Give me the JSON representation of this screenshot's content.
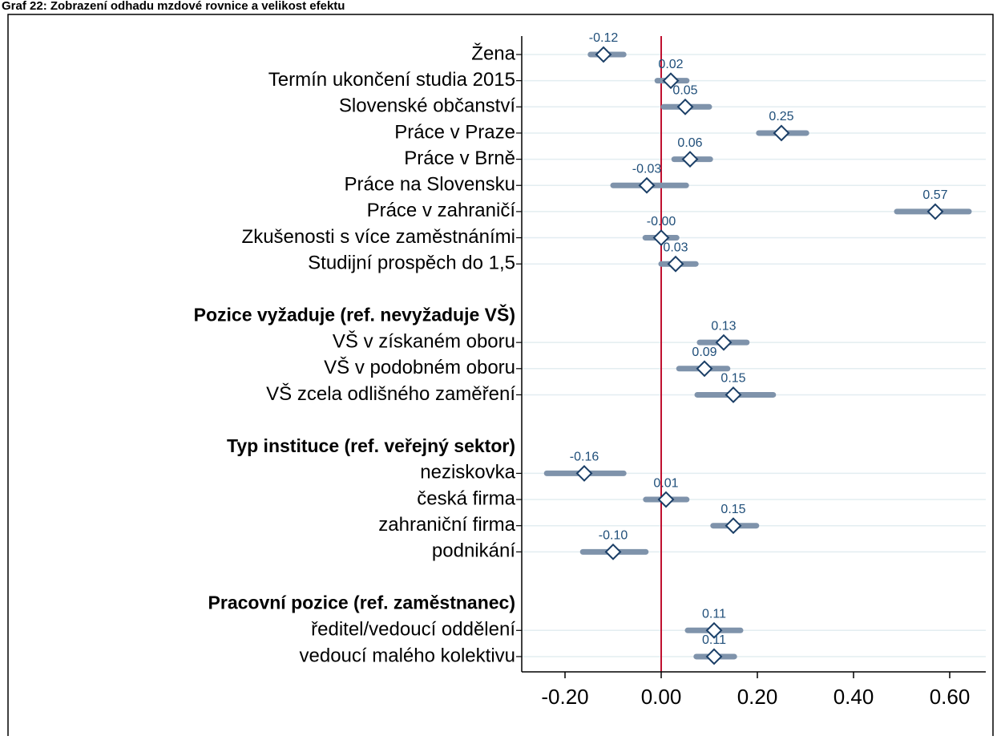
{
  "chart_data": {
    "type": "coefplot",
    "title": "Graf 22: Zobrazení odhadu mzdové rovnice a velikost efektu",
    "categories": [
      "Žena",
      "Termín ukončení studia 2015",
      "Slovenské občanství",
      "Práce v Praze",
      "Práce v Brně",
      "Práce na Slovensku",
      "Práce v zahraničí",
      "Zkušenosti s více zaměstnáními",
      "Studijní prospěch do 1,5",
      null,
      "Pozice vyžaduje (ref. nevyžaduje VŠ)",
      "VŠ v získaném oboru",
      "VŠ v podobném oboru",
      "VŠ zcela odlišného zaměření",
      null,
      "Typ instituce (ref. veřejný sektor)",
      "neziskovka",
      "česká firma",
      "zahraniční firma",
      "podnikání",
      null,
      "Pracovní pozice (ref. zaměstnanec)",
      "ředitel/vedoucí oddělení",
      "vedoucí malého kolektivu"
    ],
    "values": [
      -0.12,
      0.02,
      0.05,
      0.25,
      0.06,
      -0.03,
      0.57,
      0,
      0.03,
      null,
      null,
      0.13,
      0.09,
      0.15,
      null,
      null,
      -0.16,
      0.01,
      0.15,
      -0.1,
      null,
      null,
      0.11,
      0.11
    ],
    "value_labels": [
      "-0.12",
      "0.02",
      "0.05",
      "0.25",
      "0.06",
      "-0.03",
      "0.57",
      "-0.00",
      "0.03",
      null,
      null,
      "0.13",
      "0.09",
      "0.15",
      null,
      null,
      "-0.16",
      "0.01",
      "0.15",
      "-0.10",
      null,
      null,
      "0.11",
      "0.11"
    ],
    "lower": [
      -0.147,
      -0.008,
      0.005,
      0.203,
      0.027,
      -0.1,
      0.49,
      -0.033,
      0.0,
      null,
      null,
      0.08,
      0.037,
      0.075,
      null,
      null,
      -0.238,
      -0.032,
      0.108,
      -0.163,
      null,
      null,
      0.055,
      0.073
    ],
    "upper": [
      -0.078,
      0.053,
      0.1,
      0.302,
      0.102,
      0.052,
      0.64,
      0.032,
      0.072,
      null,
      null,
      0.178,
      0.138,
      0.233,
      null,
      null,
      -0.078,
      0.053,
      0.198,
      -0.032,
      null,
      null,
      0.165,
      0.152
    ],
    "xlim": [
      -0.29,
      0.675
    ],
    "xticks": [
      {
        "value": -0.2,
        "label": "-0.20"
      },
      {
        "value": 0,
        "label": "0.00"
      },
      {
        "value": 0.2,
        "label": "0.20"
      },
      {
        "value": 0.4,
        "label": "0.40"
      },
      {
        "value": 0.6,
        "label": "0.60"
      }
    ],
    "reference_line": 0,
    "interval_color": "#7f93ab",
    "marker_color": "#1a3e66",
    "label_color": "#1f4e79",
    "reference_color": "#c0102f",
    "grid": true
  }
}
